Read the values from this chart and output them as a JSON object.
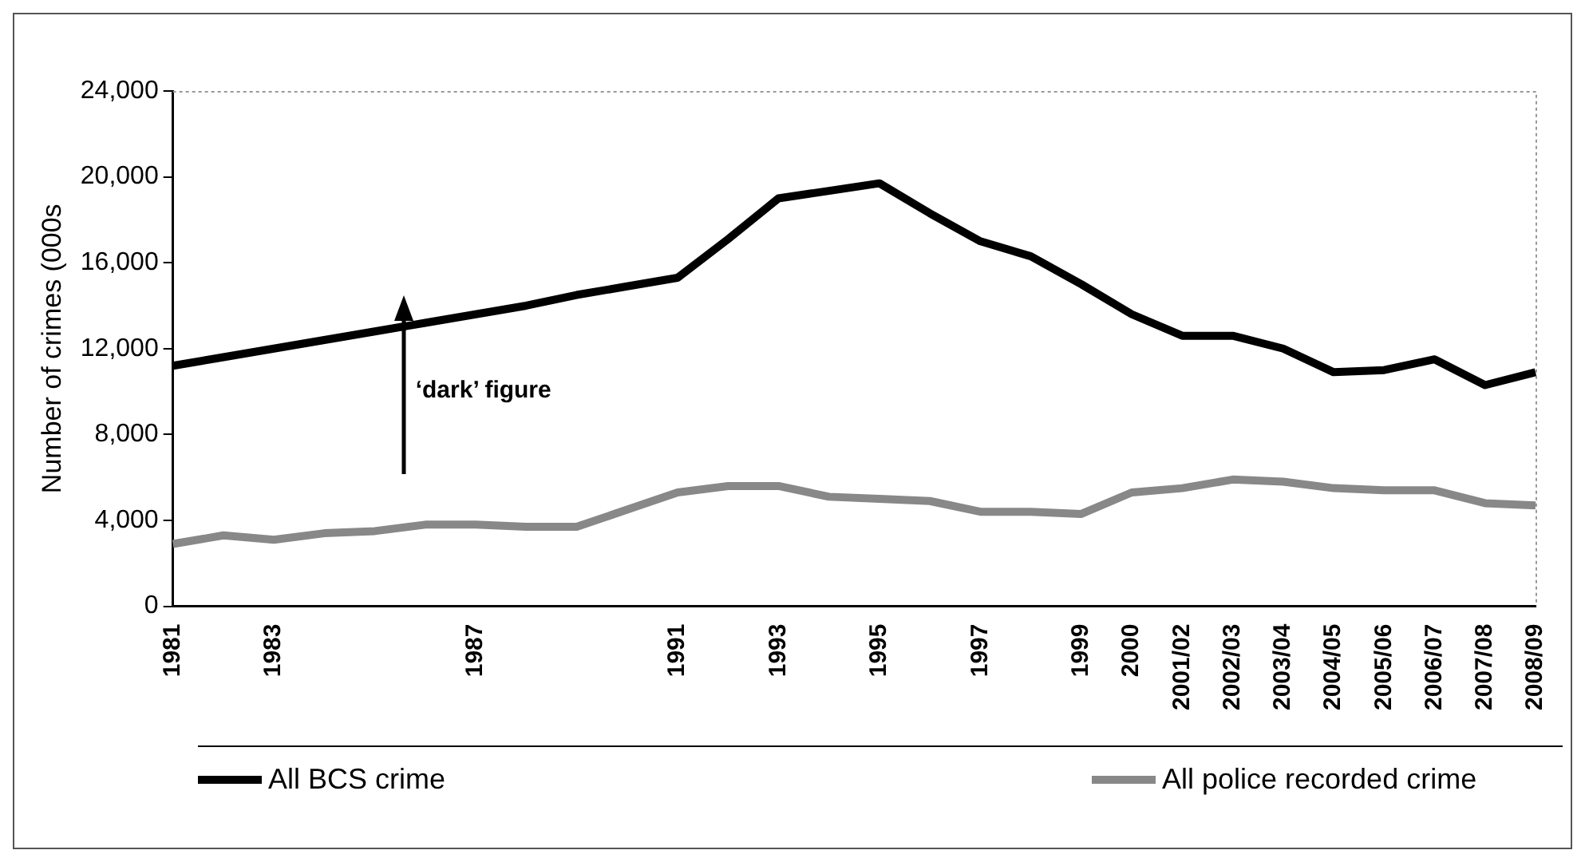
{
  "chart_data": {
    "type": "line",
    "ylabel": "Number of crimes (000s",
    "categories": [
      "1981",
      null,
      "1983",
      null,
      null,
      null,
      "1987",
      null,
      null,
      null,
      "1991",
      null,
      "1993",
      null,
      "1995",
      null,
      "1997",
      null,
      "1999",
      "2000",
      "2001/02",
      "2002/03",
      "2003/04",
      "2004/05",
      "2005/06",
      "2006/07",
      "2007/08",
      "2008/09"
    ],
    "series": [
      {
        "name": "All BCS crime",
        "color": "#000000",
        "values": [
          11200,
          11600,
          12000,
          12400,
          12800,
          13200,
          13600,
          14000,
          14500,
          14900,
          15300,
          17100,
          19000,
          19350,
          19700,
          18300,
          17000,
          16300,
          15000,
          13600,
          12600,
          12600,
          12000,
          10900,
          11000,
          11500,
          10300,
          10900
        ]
      },
      {
        "name": "All police recorded crime",
        "color": "#888888",
        "values": [
          2900,
          3300,
          3100,
          3400,
          3500,
          3800,
          3800,
          3700,
          3700,
          4500,
          5300,
          5600,
          5600,
          5100,
          5000,
          4900,
          4400,
          4400,
          4300,
          5300,
          5500,
          5900,
          5800,
          5500,
          5400,
          5400,
          4800,
          4700
        ]
      }
    ],
    "ylim": [
      0,
      24000
    ],
    "yticks": [
      {
        "value": 0,
        "label": "0"
      },
      {
        "value": 4000,
        "label": "4,000"
      },
      {
        "value": 8000,
        "label": "8,000"
      },
      {
        "value": 12000,
        "label": "12,000"
      },
      {
        "value": 16000,
        "label": "16,000"
      },
      {
        "value": 20000,
        "label": "20,000"
      },
      {
        "value": 24000,
        "label": "24,000"
      }
    ],
    "annotations": [
      "‘dark’ figure"
    ],
    "legend": "bottom",
    "marker": "none",
    "line_style": "solid"
  }
}
